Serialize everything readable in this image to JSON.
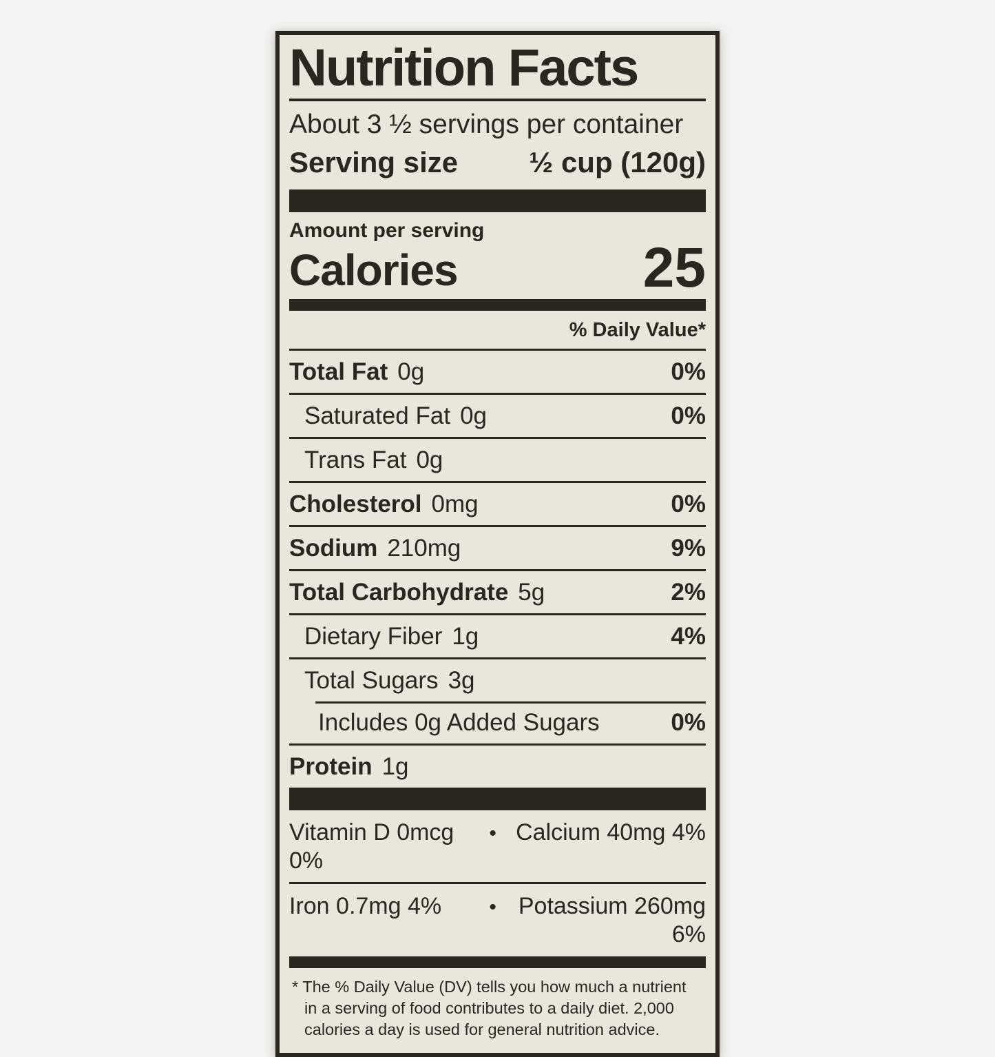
{
  "page": {
    "background_color": "#f4f3f1"
  },
  "label": {
    "colors": {
      "ink": "#2b2620",
      "paper": "#e9e7db"
    },
    "title": "Nutrition Facts",
    "servings_per_container": "About 3 ½ servings per container",
    "serving_size": {
      "label": "Serving size",
      "value": "½ cup (120g)"
    },
    "amount_per_serving": "Amount per serving",
    "calories": {
      "label": "Calories",
      "value": "25"
    },
    "daily_value_header": "% Daily Value*",
    "nutrients": [
      {
        "id": "total-fat",
        "name": "Total Fat",
        "amount": "0g",
        "dv": "0%",
        "bold": true,
        "indent": 0
      },
      {
        "id": "saturated-fat",
        "name": "Saturated Fat",
        "amount": "0g",
        "dv": "0%",
        "bold": false,
        "indent": 1
      },
      {
        "id": "trans-fat",
        "name": "Trans Fat",
        "amount": "0g",
        "dv": "",
        "bold": false,
        "indent": 1
      },
      {
        "id": "cholesterol",
        "name": "Cholesterol",
        "amount": "0mg",
        "dv": "0%",
        "bold": true,
        "indent": 0
      },
      {
        "id": "sodium",
        "name": "Sodium",
        "amount": "210mg",
        "dv": "9%",
        "bold": true,
        "indent": 0
      },
      {
        "id": "total-carbohydrate",
        "name": "Total Carbohydrate",
        "amount": "5g",
        "dv": "2%",
        "bold": true,
        "indent": 0
      },
      {
        "id": "dietary-fiber",
        "name": "Dietary Fiber",
        "amount": "1g",
        "dv": "4%",
        "bold": false,
        "indent": 1
      },
      {
        "id": "total-sugars",
        "name": "Total Sugars",
        "amount": "3g",
        "dv": "",
        "bold": false,
        "indent": 1
      },
      {
        "id": "added-sugars",
        "name": "Includes 0g Added Sugars",
        "amount": "",
        "dv": "0%",
        "bold": false,
        "indent": 2,
        "partial_rule": true
      },
      {
        "id": "protein",
        "name": "Protein",
        "amount": "1g",
        "dv": "",
        "bold": true,
        "indent": 0
      }
    ],
    "micronutrient_separator": "•",
    "micronutrients": [
      {
        "id": "vitamin-d-calcium",
        "left": "Vitamin D 0mcg 0%",
        "right": "Calcium 40mg 4%"
      },
      {
        "id": "iron-potassium",
        "left": "Iron 0.7mg 4%",
        "right": "Potassium 260mg 6%"
      }
    ],
    "footnote": "* The % Daily Value (DV) tells you how much a nutrient in a serving of food contributes to a daily diet. 2,000 calories a day is used for general nutrition advice."
  }
}
